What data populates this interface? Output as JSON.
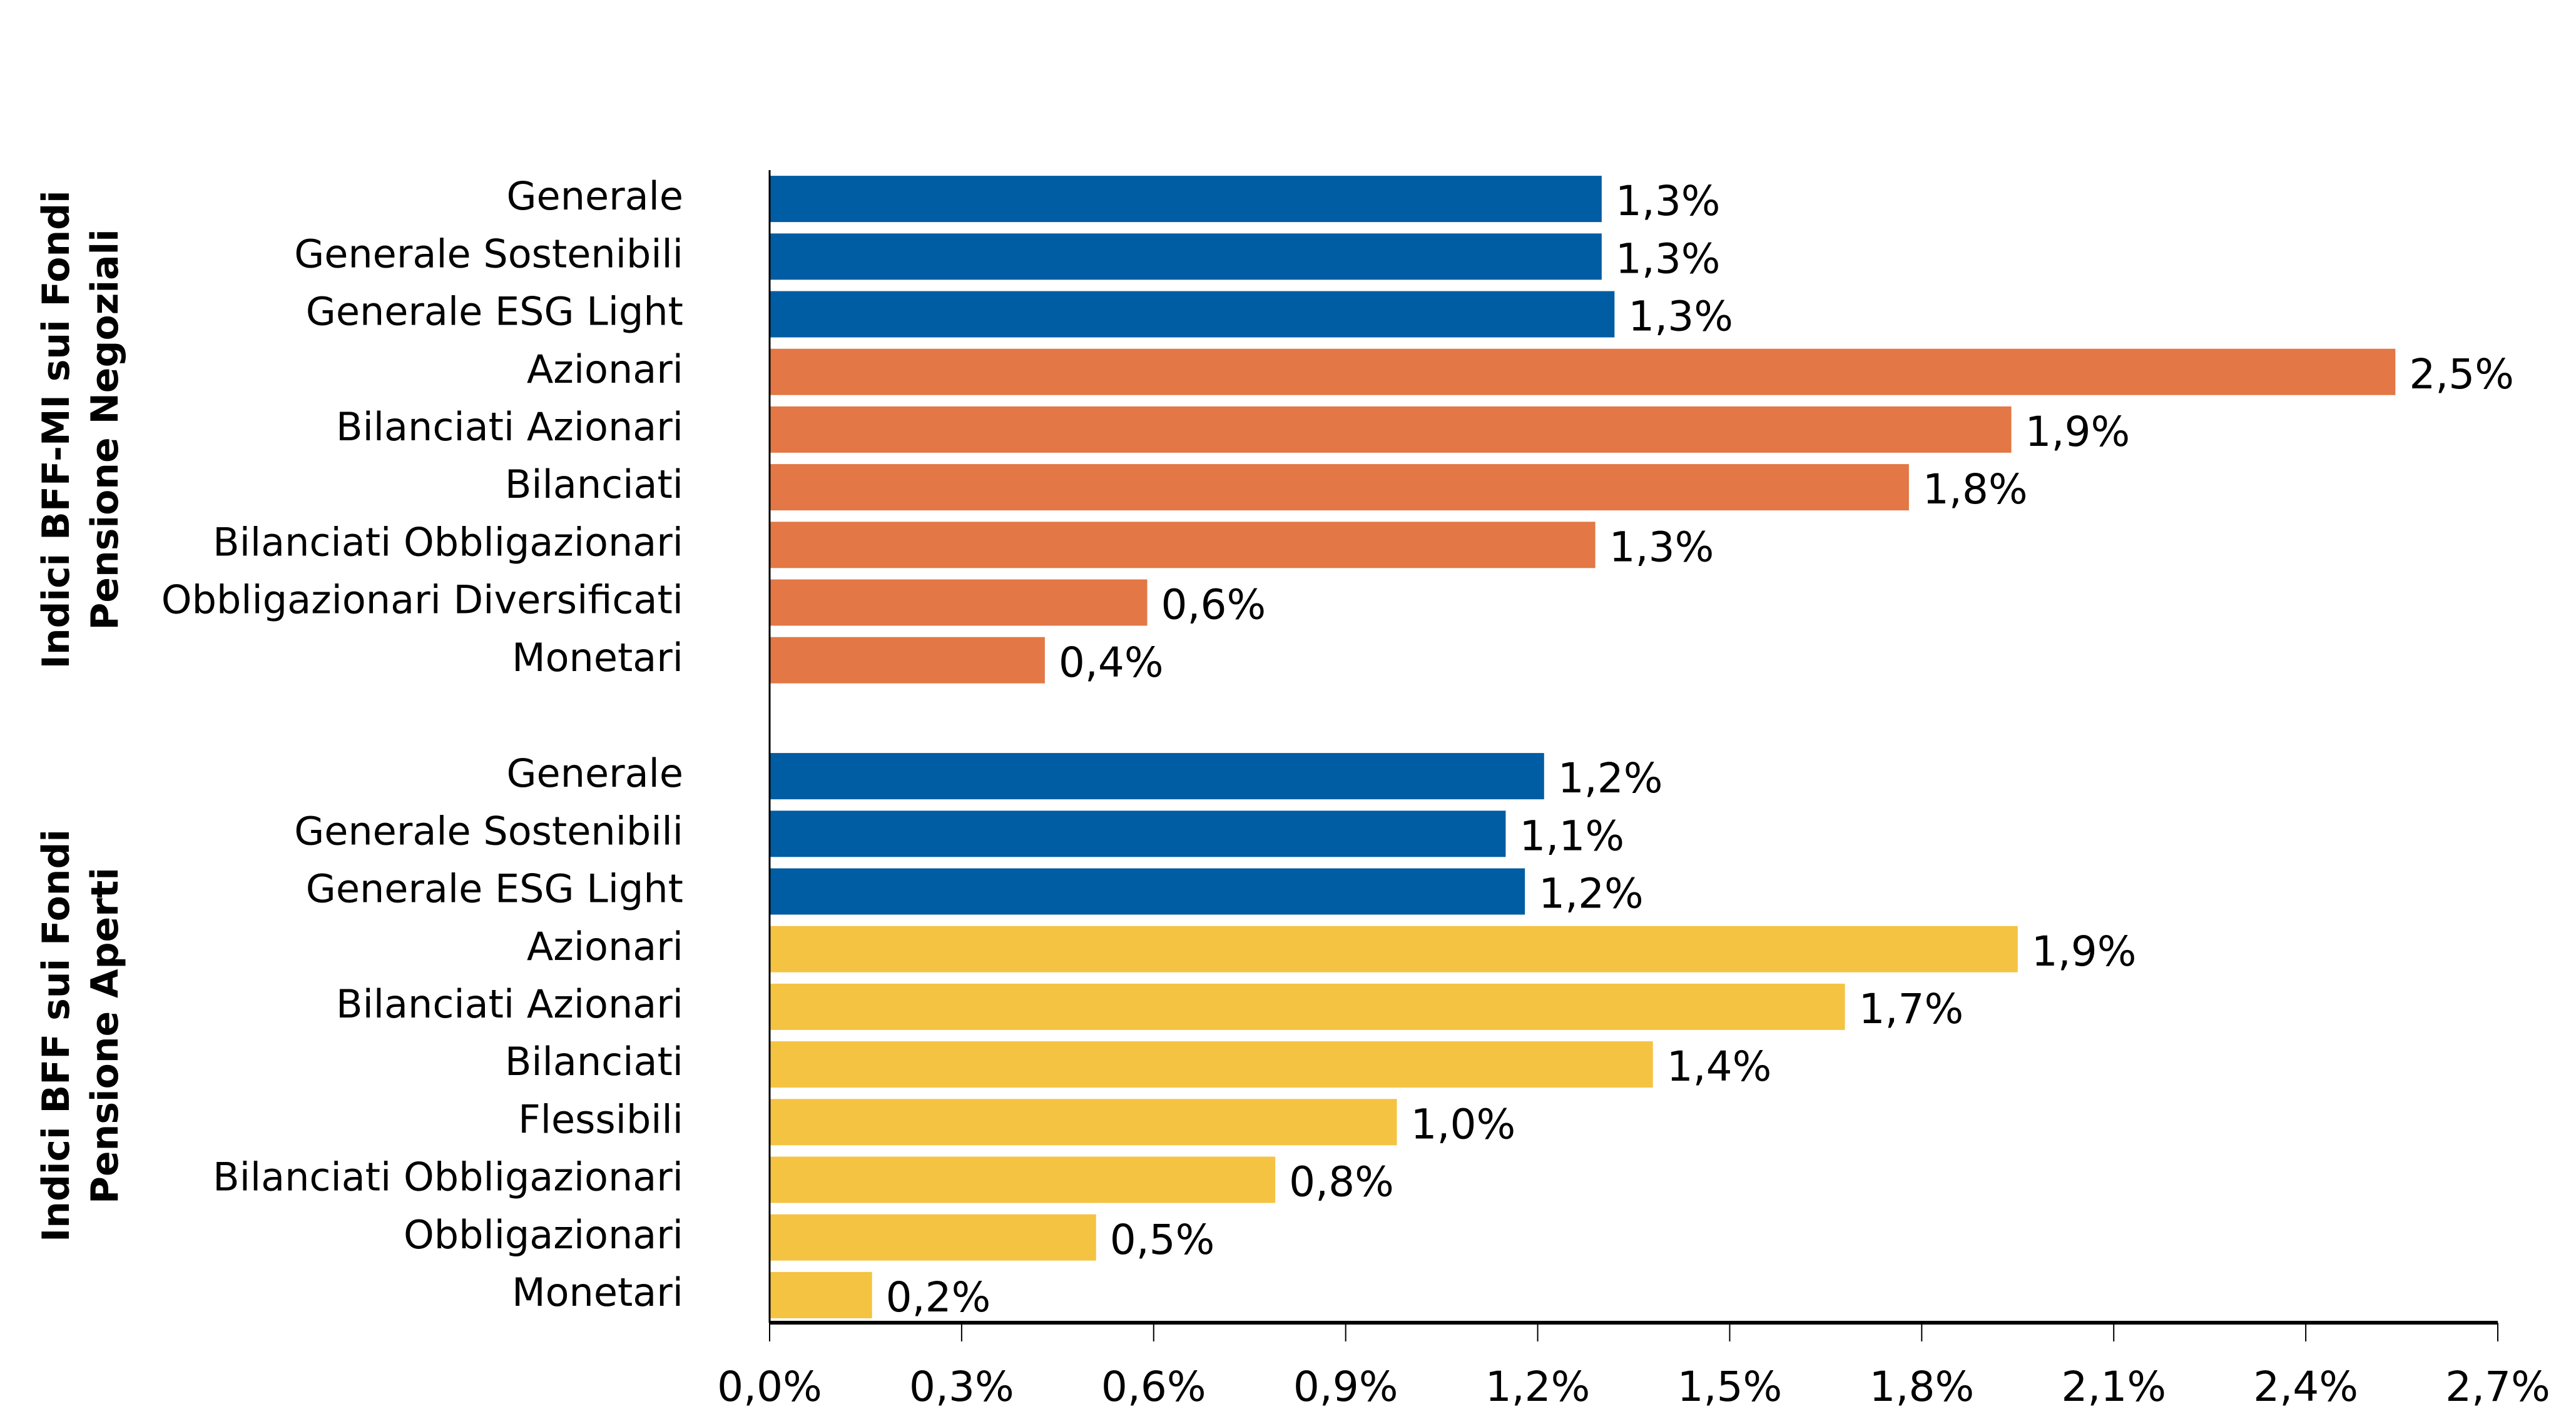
{
  "chart_data": {
    "type": "bar",
    "orientation": "horizontal",
    "title": "",
    "xlabel": "",
    "ylabel": "",
    "xlim": [
      0,
      2.7
    ],
    "xticks": [
      0.0,
      0.3,
      0.6,
      0.9,
      1.2,
      1.5,
      1.8,
      2.1,
      2.4,
      2.7
    ],
    "xtick_labels": [
      "0,0%",
      "0,3%",
      "0,6%",
      "0,9%",
      "1,2%",
      "1,5%",
      "1,8%",
      "2,1%",
      "2,4%",
      "2,7%"
    ],
    "grid": false,
    "legend": null,
    "colors": {
      "generale": "#005DA3",
      "negoziali": "#E37745",
      "aperti": "#F5C342",
      "axis": "#000000"
    },
    "groups": [
      {
        "title_line1": "Indici BFF-MI sui Fondi",
        "title_line2": "Pensione Negoziali",
        "bars": [
          {
            "category": "Generale",
            "value": 1.3,
            "label": "1,3%",
            "color_key": "generale"
          },
          {
            "category": "Generale Sostenibili",
            "value": 1.3,
            "label": "1,3%",
            "color_key": "generale"
          },
          {
            "category": "Generale ESG Light",
            "value": 1.32,
            "label": "1,3%",
            "color_key": "generale"
          },
          {
            "category": "Azionari",
            "value": 2.54,
            "label": "2,5%",
            "color_key": "negoziali"
          },
          {
            "category": "Bilanciati Azionari",
            "value": 1.94,
            "label": "1,9%",
            "color_key": "negoziali"
          },
          {
            "category": "Bilanciati",
            "value": 1.78,
            "label": "1,8%",
            "color_key": "negoziali"
          },
          {
            "category": "Bilanciati Obbligazionari",
            "value": 1.29,
            "label": "1,3%",
            "color_key": "negoziali"
          },
          {
            "category": "Obbligazionari Diversificati",
            "value": 0.59,
            "label": "0,6%",
            "color_key": "negoziali"
          },
          {
            "category": "Monetari",
            "value": 0.43,
            "label": "0,4%",
            "color_key": "negoziali"
          }
        ]
      },
      {
        "title_line1": "Indici BFF sui Fondi",
        "title_line2": "Pensione Aperti",
        "bars": [
          {
            "category": "Generale",
            "value": 1.21,
            "label": "1,2%",
            "color_key": "generale"
          },
          {
            "category": "Generale Sostenibili",
            "value": 1.15,
            "label": "1,1%",
            "color_key": "generale"
          },
          {
            "category": "Generale ESG Light",
            "value": 1.18,
            "label": "1,2%",
            "color_key": "generale"
          },
          {
            "category": "Azionari",
            "value": 1.95,
            "label": "1,9%",
            "color_key": "aperti"
          },
          {
            "category": "Bilanciati Azionari",
            "value": 1.68,
            "label": "1,7%",
            "color_key": "aperti"
          },
          {
            "category": "Bilanciati",
            "value": 1.38,
            "label": "1,4%",
            "color_key": "aperti"
          },
          {
            "category": "Flessibili",
            "value": 0.98,
            "label": "1,0%",
            "color_key": "aperti"
          },
          {
            "category": "Bilanciati Obbligazionari",
            "value": 0.79,
            "label": "0,8%",
            "color_key": "aperti"
          },
          {
            "category": "Obbligazionari",
            "value": 0.51,
            "label": "0,5%",
            "color_key": "aperti"
          },
          {
            "category": "Monetari",
            "value": 0.16,
            "label": "0,2%",
            "color_key": "aperti"
          }
        ]
      }
    ]
  }
}
